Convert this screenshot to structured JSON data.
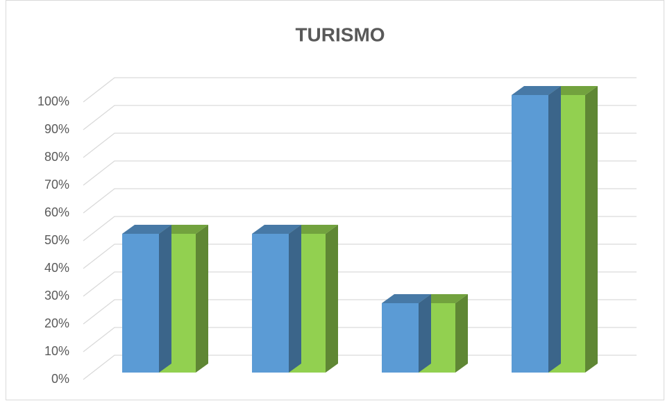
{
  "chart_data": {
    "type": "bar3d",
    "title": "TURISMO",
    "categories": [
      null,
      null,
      null,
      null
    ],
    "series": [
      {
        "color": "#5b9bd5",
        "values": [
          50,
          50,
          25,
          100
        ]
      },
      {
        "color": "#92d050",
        "values": [
          50,
          50,
          25,
          100
        ]
      }
    ],
    "ylim": [
      0,
      100
    ],
    "yticks": [
      {
        "value": 0,
        "label": "0%"
      },
      {
        "value": 10,
        "label": "10%"
      },
      {
        "value": 20,
        "label": "20%"
      },
      {
        "value": 30,
        "label": "30%"
      },
      {
        "value": 40,
        "label": "40%"
      },
      {
        "value": 50,
        "label": "50%"
      },
      {
        "value": 60,
        "label": "60%"
      },
      {
        "value": 70,
        "label": "70%"
      },
      {
        "value": 80,
        "label": "80%"
      },
      {
        "value": 90,
        "label": "90%"
      },
      {
        "value": 100,
        "label": "100%"
      }
    ],
    "grid": true
  }
}
